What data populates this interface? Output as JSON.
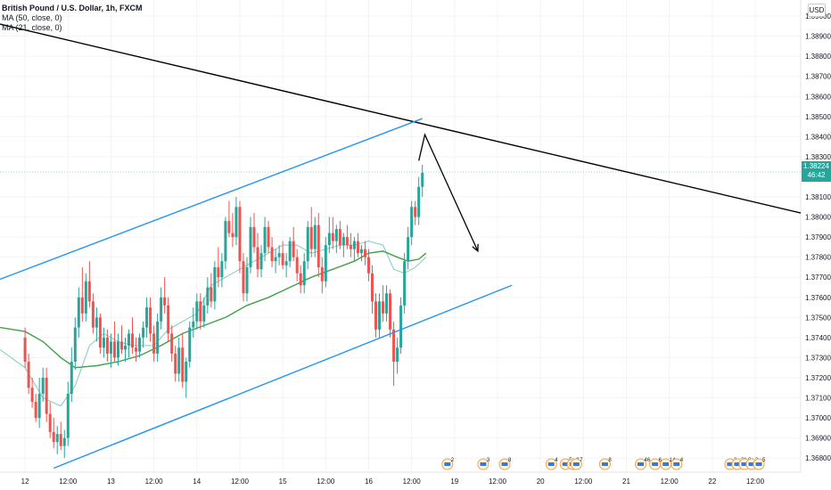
{
  "legend": {
    "symbol": "British Pound / U.S. Dollar, 1h, FXCM",
    "ma50": "MA (50, close, 0)",
    "ma21": "MA (21, close, 0)"
  },
  "currency_button": "USD",
  "last_price": {
    "value": "1.38224",
    "countdown": "46:42"
  },
  "colors": {
    "up_candle": "#26a69a",
    "down_candle": "#ef5350",
    "channel": "#2196f3",
    "trendline": "#000000",
    "ma50": "#43a047",
    "ma21": "#80cbc4",
    "price_line": "#26a69a"
  },
  "chart_data": {
    "type": "candlestick",
    "y_axis_ticks": [
      "1.39000",
      "1.38900",
      "1.38800",
      "1.38700",
      "1.38600",
      "1.38500",
      "1.38400",
      "1.38300",
      "1.38100",
      "1.38000",
      "1.37900",
      "1.37800",
      "1.37700",
      "1.37600",
      "1.37500",
      "1.37400",
      "1.37300",
      "1.37200",
      "1.37100",
      "1.37000",
      "1.36900",
      "1.36800"
    ],
    "y_tick_values": [
      1.39,
      1.389,
      1.388,
      1.387,
      1.386,
      1.385,
      1.384,
      1.383,
      1.381,
      1.38,
      1.379,
      1.378,
      1.377,
      1.376,
      1.375,
      1.374,
      1.373,
      1.372,
      1.371,
      1.37,
      1.369,
      1.368
    ],
    "ylim": [
      1.3673,
      1.3908
    ],
    "x_ticks": [
      {
        "label": "12",
        "t": 0
      },
      {
        "label": "12:00",
        "t": 12
      },
      {
        "label": "13",
        "t": 24
      },
      {
        "label": "12:00",
        "t": 36
      },
      {
        "label": "14",
        "t": 48
      },
      {
        "label": "12:00",
        "t": 60
      },
      {
        "label": "15",
        "t": 72
      },
      {
        "label": "12:00",
        "t": 84
      },
      {
        "label": "16",
        "t": 96
      },
      {
        "label": "12:00",
        "t": 108
      },
      {
        "label": "19",
        "t": 120
      },
      {
        "label": "12:00",
        "t": 132
      },
      {
        "label": "20",
        "t": 144
      },
      {
        "label": "12:00",
        "t": 156
      },
      {
        "label": "21",
        "t": 168
      },
      {
        "label": "12:00",
        "t": 180
      },
      {
        "label": "22",
        "t": 192
      },
      {
        "label": "12:00",
        "t": 204
      }
    ],
    "xlim": [
      -7.0,
      216.7
    ],
    "candles": [
      [
        1.374,
        1.3745,
        1.3725,
        1.3728
      ],
      [
        1.3728,
        1.3732,
        1.3712,
        1.3715
      ],
      [
        1.3715,
        1.372,
        1.3705,
        1.3708
      ],
      [
        1.3708,
        1.3712,
        1.3698,
        1.37
      ],
      [
        1.37,
        1.372,
        1.3695,
        1.3712
      ],
      [
        1.3712,
        1.3725,
        1.3708,
        1.372
      ],
      [
        1.372,
        1.3725,
        1.3698,
        1.3702
      ],
      [
        1.3702,
        1.3708,
        1.369,
        1.3693
      ],
      [
        1.3693,
        1.37,
        1.3685,
        1.3688
      ],
      [
        1.3688,
        1.3696,
        1.3682,
        1.3692
      ],
      [
        1.3692,
        1.3698,
        1.3684,
        1.3686
      ],
      [
        1.3686,
        1.3694,
        1.368,
        1.369
      ],
      [
        1.369,
        1.3718,
        1.3686,
        1.3712
      ],
      [
        1.3712,
        1.3735,
        1.3708,
        1.3728
      ],
      [
        1.3728,
        1.375,
        1.3724,
        1.3745
      ],
      [
        1.3745,
        1.3765,
        1.374,
        1.376
      ],
      [
        1.376,
        1.3775,
        1.3748,
        1.3752
      ],
      [
        1.3752,
        1.3772,
        1.3748,
        1.3768
      ],
      [
        1.3768,
        1.3778,
        1.3755,
        1.3758
      ],
      [
        1.3758,
        1.3762,
        1.3742,
        1.3745
      ],
      [
        1.3745,
        1.3755,
        1.3738,
        1.375
      ],
      [
        1.375,
        1.3752,
        1.3732,
        1.3735
      ],
      [
        1.3735,
        1.3745,
        1.373,
        1.374
      ],
      [
        1.374,
        1.3744,
        1.3728,
        1.3732
      ],
      [
        1.3732,
        1.3742,
        1.3725,
        1.3738
      ],
      [
        1.3738,
        1.3748,
        1.3728,
        1.373
      ],
      [
        1.373,
        1.3742,
        1.3726,
        1.3738
      ],
      [
        1.3738,
        1.3746,
        1.3732,
        1.3734
      ],
      [
        1.3734,
        1.374,
        1.3728,
        1.3736
      ],
      [
        1.3736,
        1.3744,
        1.373,
        1.3742
      ],
      [
        1.3742,
        1.375,
        1.3732,
        1.3735
      ],
      [
        1.3735,
        1.374,
        1.3728,
        1.3733
      ],
      [
        1.3733,
        1.3742,
        1.373,
        1.374
      ],
      [
        1.374,
        1.3748,
        1.3735,
        1.3745
      ],
      [
        1.3745,
        1.376,
        1.374,
        1.3755
      ],
      [
        1.3755,
        1.376,
        1.3738,
        1.3742
      ],
      [
        1.3742,
        1.3746,
        1.3728,
        1.3732
      ],
      [
        1.3732,
        1.3752,
        1.3728,
        1.3748
      ],
      [
        1.3748,
        1.3765,
        1.3744,
        1.376
      ],
      [
        1.376,
        1.377,
        1.3752,
        1.3756
      ],
      [
        1.3756,
        1.376,
        1.3738,
        1.3742
      ],
      [
        1.3742,
        1.3746,
        1.3728,
        1.3732
      ],
      [
        1.3732,
        1.3736,
        1.3718,
        1.3722
      ],
      [
        1.3722,
        1.374,
        1.3718,
        1.3735
      ],
      [
        1.3735,
        1.3742,
        1.3715,
        1.3718
      ],
      [
        1.3718,
        1.373,
        1.371,
        1.3728
      ],
      [
        1.3728,
        1.3748,
        1.3725,
        1.3745
      ],
      [
        1.3745,
        1.3755,
        1.374,
        1.3748
      ],
      [
        1.3748,
        1.3762,
        1.3744,
        1.3758
      ],
      [
        1.3758,
        1.3762,
        1.3744,
        1.3748
      ],
      [
        1.3748,
        1.376,
        1.3745,
        1.3756
      ],
      [
        1.3756,
        1.377,
        1.3752,
        1.3765
      ],
      [
        1.3765,
        1.3772,
        1.3755,
        1.3758
      ],
      [
        1.3758,
        1.3778,
        1.3754,
        1.3775
      ],
      [
        1.3775,
        1.3785,
        1.3765,
        1.377
      ],
      [
        1.377,
        1.3782,
        1.3765,
        1.3778
      ],
      [
        1.3778,
        1.38,
        1.3774,
        1.3798
      ],
      [
        1.3798,
        1.3808,
        1.379,
        1.3792
      ],
      [
        1.3792,
        1.3802,
        1.3785,
        1.379
      ],
      [
        1.379,
        1.381,
        1.3786,
        1.3805
      ],
      [
        1.3805,
        1.3808,
        1.3772,
        1.3778
      ],
      [
        1.3778,
        1.3782,
        1.3758,
        1.3762
      ],
      [
        1.3762,
        1.378,
        1.3758,
        1.3775
      ],
      [
        1.3775,
        1.38,
        1.3772,
        1.3795
      ],
      [
        1.3795,
        1.3802,
        1.3782,
        1.3785
      ],
      [
        1.3785,
        1.3792,
        1.377,
        1.3774
      ],
      [
        1.3774,
        1.3786,
        1.377,
        1.3782
      ],
      [
        1.3782,
        1.38,
        1.3778,
        1.3795
      ],
      [
        1.3795,
        1.3798,
        1.3782,
        1.3785
      ],
      [
        1.3785,
        1.379,
        1.3775,
        1.3778
      ],
      [
        1.3778,
        1.3784,
        1.3772,
        1.378
      ],
      [
        1.378,
        1.3786,
        1.3776,
        1.3782
      ],
      [
        1.3782,
        1.3788,
        1.3774,
        1.3776
      ],
      [
        1.3776,
        1.3782,
        1.377,
        1.3778
      ],
      [
        1.3778,
        1.379,
        1.3775,
        1.3788
      ],
      [
        1.3788,
        1.3795,
        1.3778,
        1.378
      ],
      [
        1.378,
        1.3784,
        1.3768,
        1.3772
      ],
      [
        1.3772,
        1.3776,
        1.3762,
        1.3766
      ],
      [
        1.3766,
        1.3782,
        1.3762,
        1.3778
      ],
      [
        1.3778,
        1.3798,
        1.3774,
        1.3795
      ],
      [
        1.3795,
        1.3805,
        1.378,
        1.3784
      ],
      [
        1.3784,
        1.38,
        1.378,
        1.3796
      ],
      [
        1.3796,
        1.3802,
        1.377,
        1.3775
      ],
      [
        1.3775,
        1.378,
        1.3762,
        1.3768
      ],
      [
        1.3768,
        1.379,
        1.3765,
        1.3786
      ],
      [
        1.3786,
        1.38,
        1.3782,
        1.3792
      ],
      [
        1.3792,
        1.38,
        1.3784,
        1.3788
      ],
      [
        1.3788,
        1.3796,
        1.3782,
        1.3794
      ],
      [
        1.3794,
        1.3798,
        1.3784,
        1.3786
      ],
      [
        1.3786,
        1.3792,
        1.378,
        1.379
      ],
      [
        1.379,
        1.3796,
        1.3784,
        1.3786
      ],
      [
        1.3786,
        1.3792,
        1.378,
        1.3784
      ],
      [
        1.3784,
        1.379,
        1.3778,
        1.3788
      ],
      [
        1.3788,
        1.3792,
        1.378,
        1.3782
      ],
      [
        1.3782,
        1.3786,
        1.3778,
        1.3784
      ],
      [
        1.3784,
        1.3788,
        1.3776,
        1.378
      ],
      [
        1.378,
        1.3784,
        1.3768,
        1.3772
      ],
      [
        1.3772,
        1.3776,
        1.3752,
        1.3758
      ],
      [
        1.3758,
        1.3762,
        1.374,
        1.3744
      ],
      [
        1.3744,
        1.3762,
        1.374,
        1.3758
      ],
      [
        1.3758,
        1.3766,
        1.3748,
        1.3752
      ],
      [
        1.3752,
        1.3766,
        1.3748,
        1.3762
      ],
      [
        1.3762,
        1.3764,
        1.374,
        1.3744
      ],
      [
        1.3744,
        1.3748,
        1.3716,
        1.3728
      ],
      [
        1.3728,
        1.374,
        1.3722,
        1.3735
      ],
      [
        1.3735,
        1.376,
        1.3732,
        1.3756
      ],
      [
        1.3756,
        1.3782,
        1.3752,
        1.3778
      ],
      [
        1.3778,
        1.3795,
        1.3774,
        1.379
      ],
      [
        1.379,
        1.3808,
        1.3786,
        1.3805
      ],
      [
        1.3805,
        1.3808,
        1.3796,
        1.38
      ],
      [
        1.38,
        1.382,
        1.3796,
        1.3815
      ],
      [
        1.3815,
        1.3826,
        1.381,
        1.3822
      ]
    ],
    "ma50": [
      [
        -7,
        1.3745
      ],
      [
        0,
        1.3743
      ],
      [
        5,
        1.3738
      ],
      [
        10,
        1.373
      ],
      [
        14,
        1.3725
      ],
      [
        20,
        1.3726
      ],
      [
        26,
        1.3728
      ],
      [
        32,
        1.3731
      ],
      [
        38,
        1.3736
      ],
      [
        44,
        1.3742
      ],
      [
        50,
        1.3746
      ],
      [
        56,
        1.375
      ],
      [
        62,
        1.3756
      ],
      [
        68,
        1.376
      ],
      [
        74,
        1.3765
      ],
      [
        80,
        1.377
      ],
      [
        86,
        1.3774
      ],
      [
        92,
        1.3778
      ],
      [
        96,
        1.3782
      ],
      [
        100,
        1.3783
      ],
      [
        104,
        1.378
      ],
      [
        107,
        1.3778
      ],
      [
        110,
        1.3779
      ],
      [
        112,
        1.3782
      ]
    ],
    "ma21": [
      [
        -7,
        1.3734
      ],
      [
        0,
        1.3725
      ],
      [
        5,
        1.371
      ],
      [
        10,
        1.3706
      ],
      [
        14,
        1.3716
      ],
      [
        18,
        1.3736
      ],
      [
        22,
        1.3742
      ],
      [
        26,
        1.3738
      ],
      [
        30,
        1.3736
      ],
      [
        36,
        1.3736
      ],
      [
        40,
        1.3744
      ],
      [
        44,
        1.3748
      ],
      [
        48,
        1.3752
      ],
      [
        52,
        1.3766
      ],
      [
        56,
        1.377
      ],
      [
        60,
        1.3774
      ],
      [
        64,
        1.3778
      ],
      [
        68,
        1.3782
      ],
      [
        72,
        1.3786
      ],
      [
        76,
        1.3786
      ],
      [
        80,
        1.3782
      ],
      [
        84,
        1.3784
      ],
      [
        88,
        1.3786
      ],
      [
        92,
        1.3786
      ],
      [
        96,
        1.3788
      ],
      [
        100,
        1.3786
      ],
      [
        103,
        1.3774
      ],
      [
        106,
        1.3772
      ],
      [
        109,
        1.3775
      ],
      [
        112,
        1.378
      ]
    ],
    "drawings": {
      "trendline": [
        [
          -7,
          1.3896
        ],
        [
          216.7,
          1.3802
        ]
      ],
      "channel_upper": [
        [
          -7,
          1.3769
        ],
        [
          111,
          1.3849
        ]
      ],
      "channel_lower": [
        [
          8,
          1.3675
        ],
        [
          136,
          1.3766
        ]
      ],
      "projection": [
        [
          110,
          1.3828
        ],
        [
          111.7,
          1.3841
        ],
        [
          126.5,
          1.3783
        ]
      ],
      "last_price_line": 1.38224
    },
    "events": [
      {
        "t": 118,
        "label": "2"
      },
      {
        "t": 128,
        "label": "3"
      },
      {
        "t": 134,
        "label": "8"
      },
      {
        "t": 147,
        "label": "4"
      },
      {
        "t": 151,
        "label": "5"
      },
      {
        "t": 153,
        "label": "2"
      },
      {
        "t": 154,
        "label": "7"
      },
      {
        "t": 162,
        "label": "8"
      },
      {
        "t": 172,
        "label": "46"
      },
      {
        "t": 176,
        "label": "6"
      },
      {
        "t": 179,
        "label": "14"
      },
      {
        "t": 182,
        "label": "4"
      },
      {
        "t": 197,
        "label": "2"
      },
      {
        "t": 199,
        "label": "21"
      },
      {
        "t": 201,
        "label": "8"
      },
      {
        "t": 203,
        "label": "2"
      },
      {
        "t": 205,
        "label": "5"
      }
    ]
  }
}
